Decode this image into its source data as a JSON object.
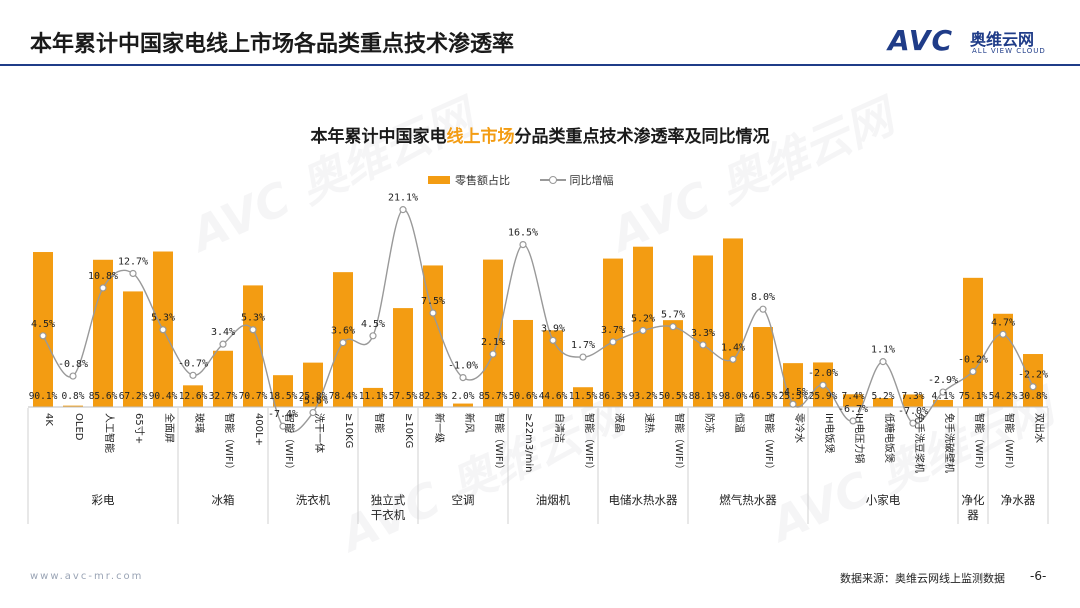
{
  "header": {
    "title": "本年累计中国家电线上市场各品类重点技术渗透率"
  },
  "logo": {
    "mark": "AVC",
    "cn": "奥维云网",
    "en": "ALL VIEW CLOUD"
  },
  "watermark": {
    "text": "AVC 奥维云网",
    "en": "ALL VIEW CLOUD"
  },
  "footer": {
    "url": "www.avc-mr.com",
    "source": "数据来源：奥维云网线上监测数据",
    "page": "-6-"
  },
  "colors": {
    "bar": "#f39c12",
    "line": "#999999",
    "rule": "#1f3c88",
    "highlight": "#f39c12"
  },
  "chart_data": {
    "type": "bar",
    "title_parts": [
      "本年累计中国家电",
      "线上市场",
      "分品类重点技术渗透率及同比情况"
    ],
    "legend": [
      "零售额占比",
      "同比增幅"
    ],
    "series": [
      {
        "name": "零售额占比",
        "type": "bar",
        "unit": "%"
      },
      {
        "name": "同比增幅",
        "type": "line",
        "unit": "%"
      }
    ],
    "ylim_bar": [
      0,
      100
    ],
    "ylim_line": [
      -10,
      22
    ],
    "items": [
      {
        "label": "4K",
        "share": 90.1,
        "share_label": "90.1%",
        "yoy": 4.5,
        "yoy_label": "4.5%"
      },
      {
        "label": "OLED",
        "share": 0.8,
        "share_label": "0.8%",
        "yoy": -0.8,
        "yoy_label": "-0.8%"
      },
      {
        "label": "人工智能",
        "share": 85.6,
        "share_label": "85.6%",
        "yoy": 10.8,
        "yoy_label": "10.8%"
      },
      {
        "label": "65寸+",
        "share": 67.2,
        "share_label": "67.2%",
        "yoy": 12.7,
        "yoy_label": "12.7%"
      },
      {
        "label": "全面屏",
        "share": 90.4,
        "share_label": "90.4%",
        "yoy": 5.3,
        "yoy_label": "5.3%"
      },
      {
        "label": "玻璃",
        "share": 12.6,
        "share_label": "12.6%",
        "yoy": -0.7,
        "yoy_label": "-0.7%"
      },
      {
        "label": "智能（WIFI）",
        "share": 32.7,
        "share_label": "32.7%",
        "yoy": 3.4,
        "yoy_label": "3.4%"
      },
      {
        "label": "400L+",
        "share": 70.7,
        "share_label": "70.7%",
        "yoy": 5.3,
        "yoy_label": "5.3%"
      },
      {
        "label": "智能（WIFI）",
        "share": 18.5,
        "share_label": "18.5%",
        "yoy": -7.4,
        "yoy_label": "-7.4%"
      },
      {
        "label": "洗干一体",
        "share": 25.8,
        "share_label": "25.8%",
        "yoy": -5.6,
        "yoy_label": "-5.6%"
      },
      {
        "label": "≥10KG",
        "share": 78.4,
        "share_label": "78.4%",
        "yoy": 3.6,
        "yoy_label": "3.6%"
      },
      {
        "label": "智能",
        "share": 11.1,
        "share_label": "11.1%",
        "yoy": 4.5,
        "yoy_label": "4.5%"
      },
      {
        "label": "≥10KG",
        "share": 57.5,
        "share_label": "57.5%",
        "yoy": 21.1,
        "yoy_label": "21.1%"
      },
      {
        "label": "新一级",
        "share": 82.3,
        "share_label": "82.3%",
        "yoy": 7.5,
        "yoy_label": "7.5%"
      },
      {
        "label": "新风",
        "share": 2.0,
        "share_label": "2.0%",
        "yoy": -1.0,
        "yoy_label": "-1.0%"
      },
      {
        "label": "智能（WIFI）",
        "share": 85.7,
        "share_label": "85.7%",
        "yoy": 2.1,
        "yoy_label": "2.1%"
      },
      {
        "label": "≥22m3/min",
        "share": 50.6,
        "share_label": "50.6%",
        "yoy": 16.5,
        "yoy_label": "16.5%"
      },
      {
        "label": "自清洁",
        "share": 44.6,
        "share_label": "44.6%",
        "yoy": 3.9,
        "yoy_label": "3.9%"
      },
      {
        "label": "智能（WIFI）",
        "share": 11.5,
        "share_label": "11.5%",
        "yoy": 1.7,
        "yoy_label": "1.7%"
      },
      {
        "label": "液晶",
        "share": 86.3,
        "share_label": "86.3%",
        "yoy": 3.7,
        "yoy_label": "3.7%"
      },
      {
        "label": "速热",
        "share": 93.2,
        "share_label": "93.2%",
        "yoy": 5.2,
        "yoy_label": "5.2%"
      },
      {
        "label": "智能（WIFI）",
        "share": 50.5,
        "share_label": "50.5%",
        "yoy": 5.7,
        "yoy_label": "5.7%"
      },
      {
        "label": "防冻",
        "share": 88.1,
        "share_label": "88.1%",
        "yoy": 3.3,
        "yoy_label": "3.3%"
      },
      {
        "label": "恒温",
        "share": 98.0,
        "share_label": "98.0%",
        "yoy": 1.4,
        "yoy_label": "1.4%"
      },
      {
        "label": "智能（WIFI）",
        "share": 46.5,
        "share_label": "46.5%",
        "yoy": 8.0,
        "yoy_label": "8.0%"
      },
      {
        "label": "零冷水",
        "share": 25.5,
        "share_label": "25.5%",
        "yoy": -4.5,
        "yoy_label": "-4.5%"
      },
      {
        "label": "IH电饭煲",
        "share": 25.9,
        "share_label": "25.9%",
        "yoy": -2.0,
        "yoy_label": "-2.0%"
      },
      {
        "label": "IH电压力锅",
        "share": 7.4,
        "share_label": "7.4%",
        "yoy": -6.7,
        "yoy_label": "-6.7%"
      },
      {
        "label": "低糖电饭煲",
        "share": 5.2,
        "share_label": "5.2%",
        "yoy": 1.1,
        "yoy_label": "1.1%"
      },
      {
        "label": "免手洗豆浆机",
        "share": 7.3,
        "share_label": "7.3%",
        "yoy": -7.0,
        "yoy_label": "-7.0%"
      },
      {
        "label": "免手洗破壁机",
        "share": 4.1,
        "share_label": "4.1%",
        "yoy": -2.9,
        "yoy_label": "-2.9%"
      },
      {
        "label": "智能（WIFI）",
        "share": 75.1,
        "share_label": "75.1%",
        "yoy": -0.2,
        "yoy_label": "-0.2%"
      },
      {
        "label": "智能（WIFI）",
        "share": 54.2,
        "share_label": "54.2%",
        "yoy": 4.7,
        "yoy_label": "4.7%"
      },
      {
        "label": "双出水",
        "share": 30.8,
        "share_label": "30.8%",
        "yoy": -2.2,
        "yoy_label": "-2.2%"
      }
    ],
    "groups": [
      {
        "name": [
          "彩电"
        ],
        "count": 5
      },
      {
        "name": [
          "冰箱"
        ],
        "count": 3
      },
      {
        "name": [
          "洗衣机"
        ],
        "count": 3
      },
      {
        "name": [
          "独立式",
          "干衣机"
        ],
        "count": 2
      },
      {
        "name": [
          "空调"
        ],
        "count": 3
      },
      {
        "name": [
          "油烟机"
        ],
        "count": 3
      },
      {
        "name": [
          "电储水热水器"
        ],
        "count": 3
      },
      {
        "name": [
          "燃气热水器"
        ],
        "count": 4
      },
      {
        "name": [
          "小家电"
        ],
        "count": 5
      },
      {
        "name": [
          "净化",
          "器"
        ],
        "count": 1
      },
      {
        "name": [
          "净水器"
        ],
        "count": 2
      }
    ]
  }
}
